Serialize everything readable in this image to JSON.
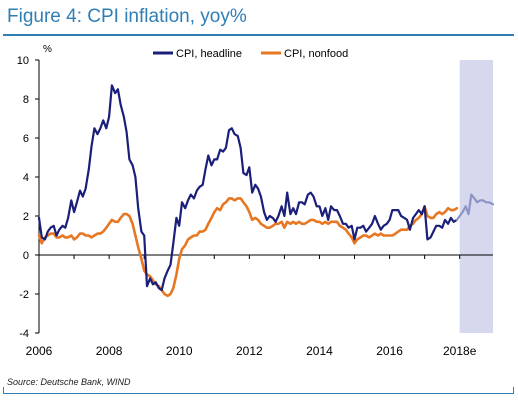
{
  "figure_title": "Figure 4: CPI inflation, yoy%",
  "source": "Source: Deutsche Bank, WIND",
  "colors": {
    "title": "#2f7fb6",
    "headline": "#1a1f7a",
    "nonfood": "#e87722",
    "forecast_band": "#d6d8ee",
    "forecast_line": "#8e93c6"
  },
  "chart_data": {
    "type": "line",
    "title": "",
    "ylabel": "%",
    "ylim": [
      -4,
      10
    ],
    "xlim": [
      2006,
      2018.95
    ],
    "yticks": [
      -4,
      -2,
      0,
      2,
      4,
      6,
      8,
      10
    ],
    "xtick_labels": [
      "2006",
      "2008",
      "2010",
      "2012",
      "2014",
      "2016",
      "2018e"
    ],
    "xticks": [
      2006,
      2008,
      2010,
      2012,
      2014,
      2016,
      2018
    ],
    "forecast_region": [
      2018,
      2018.95
    ],
    "legend_position": "top-center",
    "series": [
      {
        "name": "CPI, headline",
        "points": [
          [
            2006.0,
            1.9
          ],
          [
            2006.08,
            0.9
          ],
          [
            2006.17,
            0.8
          ],
          [
            2006.25,
            1.2
          ],
          [
            2006.33,
            1.4
          ],
          [
            2006.42,
            1.5
          ],
          [
            2006.5,
            1.0
          ],
          [
            2006.58,
            1.3
          ],
          [
            2006.67,
            1.5
          ],
          [
            2006.75,
            1.4
          ],
          [
            2006.83,
            1.9
          ],
          [
            2006.92,
            2.8
          ],
          [
            2007.0,
            2.2
          ],
          [
            2007.08,
            2.7
          ],
          [
            2007.17,
            3.3
          ],
          [
            2007.25,
            3.0
          ],
          [
            2007.33,
            3.4
          ],
          [
            2007.42,
            4.4
          ],
          [
            2007.5,
            5.6
          ],
          [
            2007.58,
            6.5
          ],
          [
            2007.67,
            6.2
          ],
          [
            2007.75,
            6.5
          ],
          [
            2007.83,
            6.9
          ],
          [
            2007.92,
            6.5
          ],
          [
            2008.0,
            7.1
          ],
          [
            2008.08,
            8.7
          ],
          [
            2008.17,
            8.3
          ],
          [
            2008.25,
            8.5
          ],
          [
            2008.33,
            7.7
          ],
          [
            2008.42,
            7.1
          ],
          [
            2008.5,
            6.3
          ],
          [
            2008.58,
            4.9
          ],
          [
            2008.67,
            4.6
          ],
          [
            2008.75,
            4.0
          ],
          [
            2008.83,
            2.4
          ],
          [
            2008.92,
            1.2
          ],
          [
            2009.0,
            1.0
          ],
          [
            2009.08,
            -1.6
          ],
          [
            2009.17,
            -1.2
          ],
          [
            2009.25,
            -1.5
          ],
          [
            2009.33,
            -1.4
          ],
          [
            2009.42,
            -1.7
          ],
          [
            2009.5,
            -1.8
          ],
          [
            2009.58,
            -1.2
          ],
          [
            2009.67,
            -0.8
          ],
          [
            2009.75,
            -0.5
          ],
          [
            2009.83,
            0.6
          ],
          [
            2009.92,
            1.9
          ],
          [
            2010.0,
            1.5
          ],
          [
            2010.08,
            2.7
          ],
          [
            2010.17,
            2.4
          ],
          [
            2010.25,
            2.8
          ],
          [
            2010.33,
            3.1
          ],
          [
            2010.42,
            2.9
          ],
          [
            2010.5,
            3.3
          ],
          [
            2010.58,
            3.5
          ],
          [
            2010.67,
            3.6
          ],
          [
            2010.75,
            4.4
          ],
          [
            2010.83,
            5.1
          ],
          [
            2010.92,
            4.6
          ],
          [
            2011.0,
            4.9
          ],
          [
            2011.08,
            4.9
          ],
          [
            2011.17,
            5.4
          ],
          [
            2011.25,
            5.3
          ],
          [
            2011.33,
            5.5
          ],
          [
            2011.42,
            6.4
          ],
          [
            2011.5,
            6.5
          ],
          [
            2011.58,
            6.2
          ],
          [
            2011.67,
            6.1
          ],
          [
            2011.75,
            5.5
          ],
          [
            2011.83,
            4.2
          ],
          [
            2011.92,
            4.1
          ],
          [
            2012.0,
            4.5
          ],
          [
            2012.08,
            3.2
          ],
          [
            2012.17,
            3.6
          ],
          [
            2012.25,
            3.4
          ],
          [
            2012.33,
            3.0
          ],
          [
            2012.42,
            2.2
          ],
          [
            2012.5,
            1.8
          ],
          [
            2012.58,
            2.0
          ],
          [
            2012.67,
            1.9
          ],
          [
            2012.75,
            1.7
          ],
          [
            2012.83,
            2.0
          ],
          [
            2012.92,
            2.5
          ],
          [
            2013.0,
            2.0
          ],
          [
            2013.08,
            3.2
          ],
          [
            2013.17,
            2.1
          ],
          [
            2013.25,
            2.4
          ],
          [
            2013.33,
            2.1
          ],
          [
            2013.42,
            2.7
          ],
          [
            2013.5,
            2.7
          ],
          [
            2013.58,
            2.6
          ],
          [
            2013.67,
            3.1
          ],
          [
            2013.75,
            3.2
          ],
          [
            2013.83,
            3.0
          ],
          [
            2013.92,
            2.5
          ],
          [
            2014.0,
            2.5
          ],
          [
            2014.08,
            2.0
          ],
          [
            2014.17,
            2.4
          ],
          [
            2014.25,
            1.8
          ],
          [
            2014.33,
            2.5
          ],
          [
            2014.42,
            2.3
          ],
          [
            2014.5,
            2.3
          ],
          [
            2014.58,
            2.0
          ],
          [
            2014.67,
            1.6
          ],
          [
            2014.75,
            1.6
          ],
          [
            2014.83,
            1.4
          ],
          [
            2014.92,
            1.5
          ],
          [
            2015.0,
            0.8
          ],
          [
            2015.08,
            1.4
          ],
          [
            2015.17,
            1.4
          ],
          [
            2015.25,
            1.5
          ],
          [
            2015.33,
            1.2
          ],
          [
            2015.42,
            1.4
          ],
          [
            2015.5,
            1.6
          ],
          [
            2015.58,
            2.0
          ],
          [
            2015.67,
            1.6
          ],
          [
            2015.75,
            1.3
          ],
          [
            2015.83,
            1.5
          ],
          [
            2015.92,
            1.6
          ],
          [
            2016.0,
            1.8
          ],
          [
            2016.08,
            2.3
          ],
          [
            2016.17,
            2.3
          ],
          [
            2016.25,
            2.3
          ],
          [
            2016.33,
            2.0
          ],
          [
            2016.42,
            1.9
          ],
          [
            2016.5,
            1.8
          ],
          [
            2016.58,
            1.3
          ],
          [
            2016.67,
            1.9
          ],
          [
            2016.75,
            2.1
          ],
          [
            2016.83,
            2.3
          ],
          [
            2016.92,
            2.1
          ],
          [
            2017.0,
            2.5
          ],
          [
            2017.08,
            0.8
          ],
          [
            2017.17,
            0.9
          ],
          [
            2017.25,
            1.2
          ],
          [
            2017.33,
            1.5
          ],
          [
            2017.42,
            1.5
          ],
          [
            2017.5,
            1.4
          ],
          [
            2017.58,
            1.8
          ],
          [
            2017.67,
            1.6
          ],
          [
            2017.75,
            1.9
          ],
          [
            2017.83,
            1.7
          ],
          [
            2017.92,
            1.8
          ]
        ]
      },
      {
        "name": "CPI, nonfood",
        "points": [
          [
            2006.0,
            1.0
          ],
          [
            2006.08,
            0.6
          ],
          [
            2006.17,
            0.9
          ],
          [
            2006.25,
            1.0
          ],
          [
            2006.33,
            1.1
          ],
          [
            2006.42,
            1.1
          ],
          [
            2006.5,
            0.9
          ],
          [
            2006.58,
            0.9
          ],
          [
            2006.67,
            1.0
          ],
          [
            2006.75,
            0.9
          ],
          [
            2006.83,
            0.9
          ],
          [
            2006.92,
            1.0
          ],
          [
            2007.0,
            0.8
          ],
          [
            2007.08,
            0.9
          ],
          [
            2007.17,
            1.1
          ],
          [
            2007.25,
            1.1
          ],
          [
            2007.33,
            1.0
          ],
          [
            2007.42,
            1.0
          ],
          [
            2007.5,
            0.9
          ],
          [
            2007.58,
            1.0
          ],
          [
            2007.67,
            1.1
          ],
          [
            2007.75,
            1.1
          ],
          [
            2007.83,
            1.2
          ],
          [
            2007.92,
            1.4
          ],
          [
            2008.0,
            1.6
          ],
          [
            2008.08,
            1.8
          ],
          [
            2008.17,
            1.7
          ],
          [
            2008.25,
            1.7
          ],
          [
            2008.33,
            1.9
          ],
          [
            2008.42,
            2.1
          ],
          [
            2008.5,
            2.1
          ],
          [
            2008.58,
            2.0
          ],
          [
            2008.67,
            1.6
          ],
          [
            2008.75,
            1.0
          ],
          [
            2008.83,
            0.4
          ],
          [
            2008.92,
            -0.2
          ],
          [
            2009.0,
            -0.8
          ],
          [
            2009.08,
            -1.0
          ],
          [
            2009.17,
            -1.1
          ],
          [
            2009.25,
            -1.3
          ],
          [
            2009.33,
            -1.5
          ],
          [
            2009.42,
            -1.6
          ],
          [
            2009.5,
            -1.8
          ],
          [
            2009.58,
            -2.0
          ],
          [
            2009.67,
            -2.1
          ],
          [
            2009.75,
            -2.0
          ],
          [
            2009.83,
            -1.7
          ],
          [
            2009.92,
            -1.0
          ],
          [
            2010.0,
            -0.2
          ],
          [
            2010.08,
            0.3
          ],
          [
            2010.17,
            0.5
          ],
          [
            2010.25,
            0.8
          ],
          [
            2010.33,
            0.9
          ],
          [
            2010.42,
            1.0
          ],
          [
            2010.5,
            1.0
          ],
          [
            2010.58,
            1.2
          ],
          [
            2010.67,
            1.2
          ],
          [
            2010.75,
            1.3
          ],
          [
            2010.83,
            1.6
          ],
          [
            2010.92,
            1.9
          ],
          [
            2011.0,
            2.2
          ],
          [
            2011.08,
            2.4
          ],
          [
            2011.17,
            2.3
          ],
          [
            2011.25,
            2.6
          ],
          [
            2011.33,
            2.7
          ],
          [
            2011.42,
            2.9
          ],
          [
            2011.5,
            2.9
          ],
          [
            2011.58,
            2.8
          ],
          [
            2011.67,
            2.9
          ],
          [
            2011.75,
            2.9
          ],
          [
            2011.83,
            2.7
          ],
          [
            2011.92,
            2.5
          ],
          [
            2012.0,
            2.2
          ],
          [
            2012.08,
            1.8
          ],
          [
            2012.17,
            1.9
          ],
          [
            2012.25,
            1.8
          ],
          [
            2012.33,
            1.6
          ],
          [
            2012.42,
            1.5
          ],
          [
            2012.5,
            1.4
          ],
          [
            2012.58,
            1.4
          ],
          [
            2012.67,
            1.5
          ],
          [
            2012.75,
            1.6
          ],
          [
            2012.83,
            1.6
          ],
          [
            2012.92,
            1.7
          ],
          [
            2013.0,
            1.4
          ],
          [
            2013.08,
            1.7
          ],
          [
            2013.17,
            1.6
          ],
          [
            2013.25,
            1.7
          ],
          [
            2013.33,
            1.6
          ],
          [
            2013.42,
            1.7
          ],
          [
            2013.5,
            1.6
          ],
          [
            2013.58,
            1.6
          ],
          [
            2013.67,
            1.7
          ],
          [
            2013.75,
            1.8
          ],
          [
            2013.83,
            1.8
          ],
          [
            2013.92,
            1.7
          ],
          [
            2014.0,
            1.7
          ],
          [
            2014.08,
            1.6
          ],
          [
            2014.17,
            1.7
          ],
          [
            2014.25,
            1.6
          ],
          [
            2014.33,
            1.7
          ],
          [
            2014.42,
            1.7
          ],
          [
            2014.5,
            1.7
          ],
          [
            2014.58,
            1.5
          ],
          [
            2014.67,
            1.4
          ],
          [
            2014.75,
            1.3
          ],
          [
            2014.83,
            1.1
          ],
          [
            2014.92,
            0.9
          ],
          [
            2015.0,
            0.6
          ],
          [
            2015.08,
            0.8
          ],
          [
            2015.17,
            0.9
          ],
          [
            2015.25,
            1.0
          ],
          [
            2015.33,
            1.0
          ],
          [
            2015.42,
            0.9
          ],
          [
            2015.5,
            1.0
          ],
          [
            2015.58,
            1.1
          ],
          [
            2015.67,
            1.0
          ],
          [
            2015.75,
            1.1
          ],
          [
            2015.83,
            1.0
          ],
          [
            2015.92,
            1.0
          ],
          [
            2016.0,
            1.0
          ],
          [
            2016.08,
            1.0
          ],
          [
            2016.17,
            1.1
          ],
          [
            2016.25,
            1.2
          ],
          [
            2016.33,
            1.3
          ],
          [
            2016.42,
            1.3
          ],
          [
            2016.5,
            1.3
          ],
          [
            2016.58,
            1.5
          ],
          [
            2016.67,
            1.6
          ],
          [
            2016.75,
            1.8
          ],
          [
            2016.83,
            1.9
          ],
          [
            2016.92,
            2.1
          ],
          [
            2017.0,
            2.5
          ],
          [
            2017.08,
            2.0
          ],
          [
            2017.17,
            1.9
          ],
          [
            2017.25,
            1.9
          ],
          [
            2017.33,
            2.1
          ],
          [
            2017.42,
            2.2
          ],
          [
            2017.5,
            2.1
          ],
          [
            2017.58,
            2.2
          ],
          [
            2017.67,
            2.4
          ],
          [
            2017.75,
            2.3
          ],
          [
            2017.83,
            2.3
          ],
          [
            2017.92,
            2.4
          ]
        ]
      },
      {
        "name": "forecast",
        "points": [
          [
            2017.92,
            1.8
          ],
          [
            2018.08,
            2.2
          ],
          [
            2018.17,
            2.5
          ],
          [
            2018.25,
            2.1
          ],
          [
            2018.33,
            3.1
          ],
          [
            2018.42,
            2.9
          ],
          [
            2018.5,
            2.7
          ],
          [
            2018.58,
            2.8
          ],
          [
            2018.67,
            2.8
          ],
          [
            2018.75,
            2.7
          ],
          [
            2018.83,
            2.7
          ],
          [
            2018.95,
            2.6
          ]
        ]
      }
    ]
  }
}
